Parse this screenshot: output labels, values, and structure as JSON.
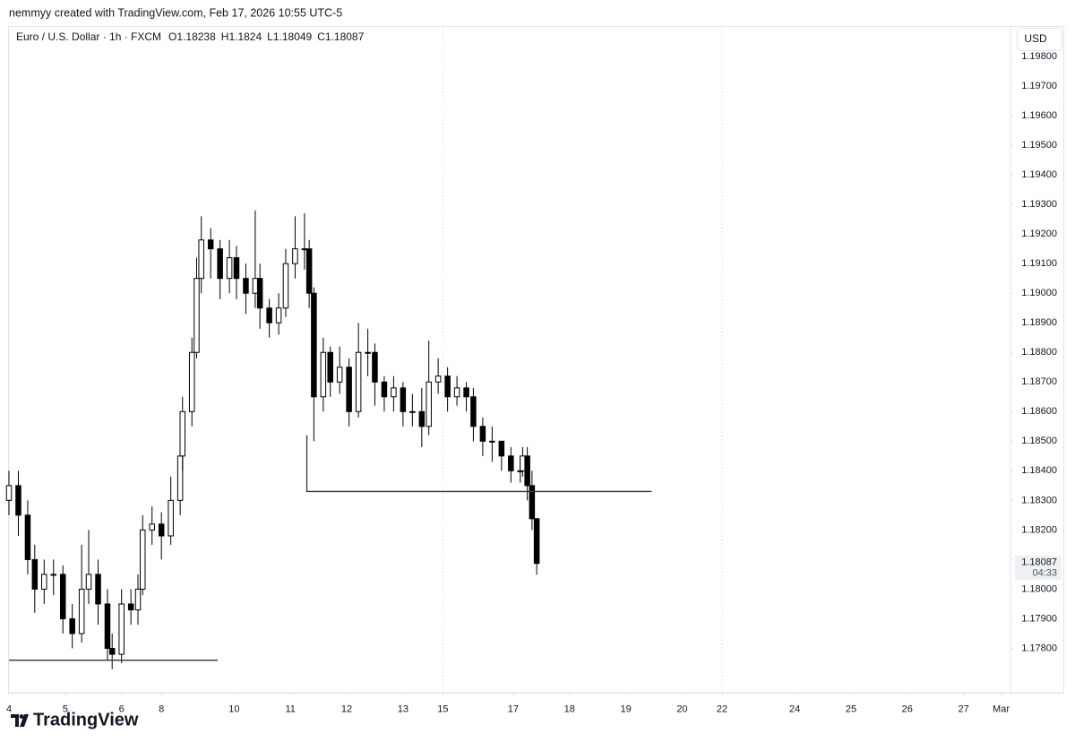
{
  "header": "nemmyy created with TradingView.com, Feb 17, 2026 10:55 UTC-5",
  "brand": "TradingView",
  "chart_data": {
    "type": "candlestick",
    "title": "Euro / U.S. Dollar · 1h · FXCM",
    "legend_ohlc": [
      {
        "label": "O",
        "value": 1.18238
      },
      {
        "label": "H",
        "value": 1.1824
      },
      {
        "label": "L",
        "value": 1.18049
      },
      {
        "label": "C",
        "value": 1.18087
      }
    ],
    "currency": "USD",
    "countdown": "04:33",
    "up_color": "#ffffff",
    "down_color": "#000000",
    "line_color": "#000000",
    "x": [
      0,
      4,
      8,
      11,
      15,
      19,
      23,
      27,
      31,
      34,
      38,
      42,
      44,
      48,
      52,
      55,
      57,
      61,
      65,
      69,
      73,
      74,
      78,
      80,
      82,
      86,
      90,
      94,
      97,
      101,
      105,
      107,
      111,
      115,
      118,
      122,
      126,
      128,
      130,
      134,
      137,
      141,
      145,
      149,
      153,
      156,
      160,
      164,
      168,
      172,
      176,
      179,
      183,
      187,
      191,
      195,
      198,
      202,
      206,
      210,
      214,
      218,
      219,
      221,
      223,
      225
    ],
    "open": [
      1.183,
      1.1835,
      1.1825,
      1.181,
      1.18,
      1.1805,
      1.1805,
      1.179,
      1.1785,
      1.18,
      1.1805,
      1.1795,
      1.178,
      1.1778,
      1.1795,
      1.1793,
      1.18,
      1.182,
      1.1822,
      1.1818,
      1.183,
      1.1845,
      1.186,
      1.188,
      1.1905,
      1.1918,
      1.1915,
      1.1905,
      1.1912,
      1.1905,
      1.19,
      1.1905,
      1.1895,
      1.189,
      1.1895,
      1.191,
      1.1915,
      1.1915,
      1.19,
      1.1865,
      1.188,
      1.187,
      1.1875,
      1.186,
      1.188,
      1.188,
      1.187,
      1.1865,
      1.1868,
      1.186,
      1.186,
      1.1855,
      1.187,
      1.1872,
      1.1865,
      1.1868,
      1.1865,
      1.1855,
      1.185,
      1.185,
      1.1845,
      1.184,
      1.184,
      1.1845,
      1.1835,
      1.18238
    ],
    "high": [
      1.184,
      1.184,
      1.183,
      1.1815,
      1.181,
      1.181,
      1.1808,
      1.1795,
      1.1815,
      1.182,
      1.181,
      1.18,
      1.1785,
      1.18,
      1.18,
      1.1805,
      1.1825,
      1.1828,
      1.1826,
      1.1838,
      1.185,
      1.1865,
      1.1885,
      1.1912,
      1.1926,
      1.1922,
      1.1918,
      1.1918,
      1.1916,
      1.191,
      1.1928,
      1.191,
      1.1898,
      1.19,
      1.1915,
      1.1926,
      1.1927,
      1.1918,
      1.1902,
      1.1885,
      1.1882,
      1.1882,
      1.1878,
      1.189,
      1.1888,
      1.1883,
      1.1872,
      1.1872,
      1.187,
      1.1866,
      1.1868,
      1.1884,
      1.1878,
      1.1875,
      1.1872,
      1.187,
      1.1868,
      1.1858,
      1.1855,
      1.185,
      1.1848,
      1.1845,
      1.1848,
      1.1848,
      1.184,
      1.1824
    ],
    "low": [
      1.1825,
      1.1818,
      1.1805,
      1.1792,
      1.1795,
      1.1798,
      1.1785,
      1.178,
      1.1782,
      1.1795,
      1.1788,
      1.1776,
      1.1773,
      1.1775,
      1.1788,
      1.1788,
      1.1798,
      1.1815,
      1.181,
      1.1815,
      1.1825,
      1.184,
      1.1855,
      1.1878,
      1.19,
      1.1905,
      1.1898,
      1.19,
      1.1898,
      1.1893,
      1.1895,
      1.1888,
      1.1885,
      1.1886,
      1.1892,
      1.1905,
      1.1908,
      1.1895,
      1.185,
      1.186,
      1.1865,
      1.1866,
      1.1855,
      1.1858,
      1.1872,
      1.1862,
      1.186,
      1.186,
      1.1855,
      1.1855,
      1.1848,
      1.1852,
      1.1866,
      1.186,
      1.1862,
      1.186,
      1.185,
      1.1845,
      1.1843,
      1.184,
      1.1836,
      1.1836,
      1.1838,
      1.183,
      1.182,
      1.18049
    ],
    "close": [
      1.1835,
      1.1825,
      1.181,
      1.18,
      1.1805,
      1.1805,
      1.179,
      1.1785,
      1.18,
      1.1805,
      1.1795,
      1.178,
      1.1778,
      1.1795,
      1.1793,
      1.18,
      1.182,
      1.1822,
      1.1818,
      1.183,
      1.1845,
      1.186,
      1.188,
      1.1905,
      1.1918,
      1.1915,
      1.1905,
      1.1912,
      1.1905,
      1.19,
      1.1905,
      1.1895,
      1.189,
      1.1895,
      1.191,
      1.1915,
      1.1915,
      1.19,
      1.1865,
      1.188,
      1.187,
      1.1875,
      1.186,
      1.188,
      1.188,
      1.187,
      1.1865,
      1.1868,
      1.186,
      1.186,
      1.1855,
      1.187,
      1.1872,
      1.1865,
      1.1868,
      1.1865,
      1.1855,
      1.185,
      1.185,
      1.1845,
      1.184,
      1.184,
      1.1845,
      1.1835,
      1.18238,
      1.18087
    ],
    "xlim": [
      0,
      427
    ],
    "xticks": [
      {
        "value": 0,
        "label": "4"
      },
      {
        "value": 24,
        "label": "5"
      },
      {
        "value": 48,
        "label": "6"
      },
      {
        "value": 65,
        "label": "8"
      },
      {
        "value": 96,
        "label": "10"
      },
      {
        "value": 120,
        "label": "11"
      },
      {
        "value": 144,
        "label": "12"
      },
      {
        "value": 168,
        "label": "13"
      },
      {
        "value": 185,
        "label": "15"
      },
      {
        "value": 215,
        "label": "17"
      },
      {
        "value": 239,
        "label": "18"
      },
      {
        "value": 263,
        "label": "19"
      },
      {
        "value": 287,
        "label": "20"
      },
      {
        "value": 304,
        "label": "22"
      },
      {
        "value": 335,
        "label": "24"
      },
      {
        "value": 359,
        "label": "25"
      },
      {
        "value": 383,
        "label": "26"
      },
      {
        "value": 407,
        "label": "27"
      },
      {
        "value": 423,
        "label": "Mar"
      }
    ],
    "ylim": [
      1.1765,
      1.199
    ],
    "yticks": [
      {
        "value": 1.178,
        "label": "1.17800"
      },
      {
        "value": 1.179,
        "label": "1.17900"
      },
      {
        "value": 1.18,
        "label": "1.18000"
      },
      {
        "value": 1.181,
        "label": "1.18100"
      },
      {
        "value": 1.182,
        "label": "1.18200"
      },
      {
        "value": 1.183,
        "label": "1.18300"
      },
      {
        "value": 1.184,
        "label": "1.18400"
      },
      {
        "value": 1.185,
        "label": "1.18500"
      },
      {
        "value": 1.186,
        "label": "1.18600"
      },
      {
        "value": 1.187,
        "label": "1.18700"
      },
      {
        "value": 1.188,
        "label": "1.18800"
      },
      {
        "value": 1.189,
        "label": "1.18900"
      },
      {
        "value": 1.19,
        "label": "1.19000"
      },
      {
        "value": 1.191,
        "label": "1.19100"
      },
      {
        "value": 1.192,
        "label": "1.19200"
      },
      {
        "value": 1.193,
        "label": "1.19300"
      },
      {
        "value": 1.194,
        "label": "1.19400"
      },
      {
        "value": 1.195,
        "label": "1.19500"
      },
      {
        "value": 1.196,
        "label": "1.19600"
      },
      {
        "value": 1.197,
        "label": "1.19700"
      },
      {
        "value": 1.198,
        "label": "1.19800"
      }
    ],
    "session_lines": [
      185,
      304
    ],
    "drawings": [
      {
        "x": [
          0,
          89
        ],
        "y": [
          1.1776,
          1.1776
        ]
      },
      {
        "x": [
          127,
          127,
          274
        ],
        "y": [
          1.1852,
          1.1833,
          1.1833
        ]
      }
    ]
  }
}
